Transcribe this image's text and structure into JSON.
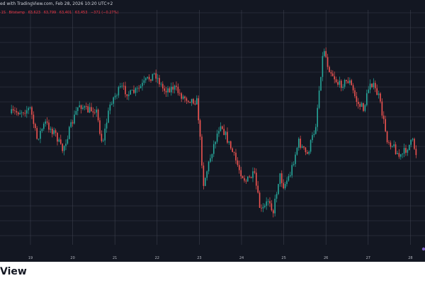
{
  "header": {
    "attribution": "ed with TradingView.com, Feb 28, 2026 10:20 UTC+2",
    "ohlc": [
      "·1S",
      "Bitstamp",
      "63,623",
      "63,799",
      "63,401",
      "63,453",
      "−371 (−0.27%)"
    ]
  },
  "footer": {
    "brand": "View"
  },
  "colors": {
    "background": "#131722",
    "grid": "#3b3f4c",
    "up": "#26a69a",
    "down": "#ef5350",
    "marker": "#7b5fc2"
  },
  "chart_data": {
    "type": "candlestick",
    "x_tick_labels": [
      "19",
      "20",
      "21",
      "22",
      "23",
      "24",
      "25",
      "26",
      "27",
      "28"
    ],
    "grid": true,
    "series": [
      {
        "x_days": [
          18.55,
          18.8,
          19.0,
          19.15,
          19.35,
          19.6,
          19.75,
          19.95,
          20.15,
          20.35,
          20.55,
          20.7,
          20.9,
          21.15,
          21.35,
          21.55,
          21.75,
          21.95,
          22.15,
          22.4,
          22.6,
          22.95,
          23.1,
          23.3,
          23.5,
          23.75,
          23.95,
          24.1,
          24.3,
          24.45,
          24.55,
          24.65,
          24.75,
          24.9,
          25.0,
          25.15,
          25.35,
          25.55,
          25.75,
          25.9,
          25.95,
          26.05,
          26.3,
          26.55,
          26.75,
          26.9,
          27.05,
          27.25,
          27.45,
          27.6,
          27.75,
          27.95,
          28.05,
          28.15
        ],
        "y_level": [
          0.44,
          0.43,
          0.42,
          0.55,
          0.48,
          0.53,
          0.6,
          0.5,
          0.4,
          0.43,
          0.42,
          0.57,
          0.39,
          0.33,
          0.36,
          0.34,
          0.3,
          0.27,
          0.34,
          0.33,
          0.37,
          0.39,
          0.74,
          0.6,
          0.48,
          0.59,
          0.68,
          0.73,
          0.7,
          0.86,
          0.84,
          0.8,
          0.86,
          0.7,
          0.75,
          0.7,
          0.56,
          0.62,
          0.5,
          0.23,
          0.16,
          0.24,
          0.32,
          0.3,
          0.4,
          0.42,
          0.3,
          0.37,
          0.55,
          0.58,
          0.63,
          0.58,
          0.56,
          0.62
        ]
      }
    ]
  }
}
